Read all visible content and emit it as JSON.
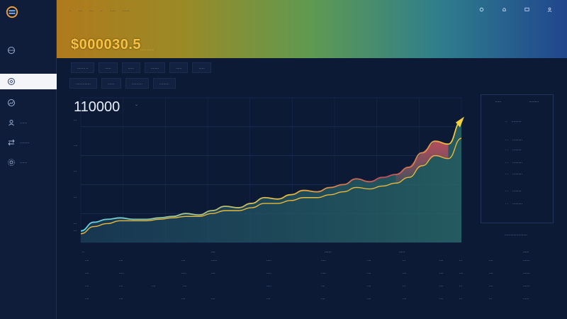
{
  "sidebar": {
    "items": [
      {
        "icon": "globe-icon",
        "label": ""
      },
      {
        "icon": "wallet-icon",
        "label": "",
        "active": true
      },
      {
        "icon": "chart-icon",
        "label": ""
      },
      {
        "icon": "user-icon",
        "label": "......"
      },
      {
        "icon": "exchange-icon",
        "label": "........"
      },
      {
        "icon": "settings-icon",
        "label": "......"
      }
    ]
  },
  "header": {
    "nav": [
      "..",
      "....",
      "....",
      "..",
      "......",
      "......."
    ],
    "balance": "$000030.5",
    "balance_sub": "...... .......",
    "icons": [
      "gear-icon",
      "bell-icon",
      "message-icon",
      "profile-icon"
    ]
  },
  "filters": {
    "row1": [
      "........  ..",
      "......",
      "......",
      "........",
      "......",
      "......"
    ],
    "row2": [
      "...............",
      ".......",
      "...........",
      ".........."
    ]
  },
  "chart": {
    "value": "110000",
    "ylabels": [
      "...",
      "....",
      "...",
      "...",
      "...",
      "..."
    ]
  },
  "chart_data": {
    "type": "area",
    "title": "",
    "xlabel": "",
    "ylabel": "",
    "x": [
      0,
      1,
      2,
      3,
      4,
      5,
      6,
      7,
      8,
      9,
      10,
      11,
      12,
      13,
      14,
      15,
      16,
      17,
      18,
      19,
      20,
      21,
      22,
      23,
      24,
      25,
      26,
      27,
      28,
      29
    ],
    "series": [
      {
        "values": [
          8,
          14,
          16,
          17,
          16,
          16,
          17,
          18,
          20,
          19,
          22,
          25,
          24,
          27,
          31,
          30,
          33,
          36,
          35,
          38,
          40,
          44,
          42,
          45,
          47,
          52,
          62,
          70,
          68,
          84
        ]
      },
      {
        "values": [
          6,
          11,
          13,
          15,
          15,
          15,
          16,
          17,
          18,
          18,
          20,
          22,
          22,
          24,
          27,
          27,
          29,
          31,
          31,
          33,
          35,
          38,
          37,
          39,
          41,
          45,
          53,
          60,
          58,
          72
        ]
      }
    ],
    "ylim": [
      0,
      100
    ]
  },
  "right_panel": {
    "headers": [
      "......",
      ".........."
    ],
    "rows": [
      [
        "..",
        ".........."
      ],
      [
        ". .",
        ".........."
      ],
      [
        ". .",
        "........."
      ],
      [
        ". .",
        ".........."
      ],
      [
        ". .",
        ".........."
      ],
      [
        ". .",
        "........."
      ],
      [
        ". .",
        ".........."
      ]
    ],
    "footer": "......................."
  },
  "table": {
    "headers": [
      "..",
      "....",
      ".......",
      "......",
      "......"
    ],
    "rows": [
      [
        "....",
        "....",
        "....",
        "......",
        ".....",
        ".....",
        "....",
        "...",
        "....",
        "...",
        "....",
        "......."
      ],
      [
        "....",
        ".....",
        ".....",
        "....",
        ".....",
        ".....",
        "....",
        "....",
        "....",
        "....",
        "....",
        "......."
      ],
      [
        "....",
        "....",
        "....",
        "....",
        ".....",
        "....",
        "....",
        "...",
        "....",
        "...",
        "....",
        "......."
      ],
      [
        "....",
        "....",
        "....",
        "....",
        "....",
        "....",
        "....",
        "....",
        "....",
        "...",
        "...",
        "......"
      ]
    ]
  },
  "colors": {
    "bg": "#0d1a36",
    "accent_gold": "#f6c244",
    "line_cyan": "#5fd3e8",
    "line_yellow": "#e8b83a",
    "area_red": "#c64a5c"
  }
}
